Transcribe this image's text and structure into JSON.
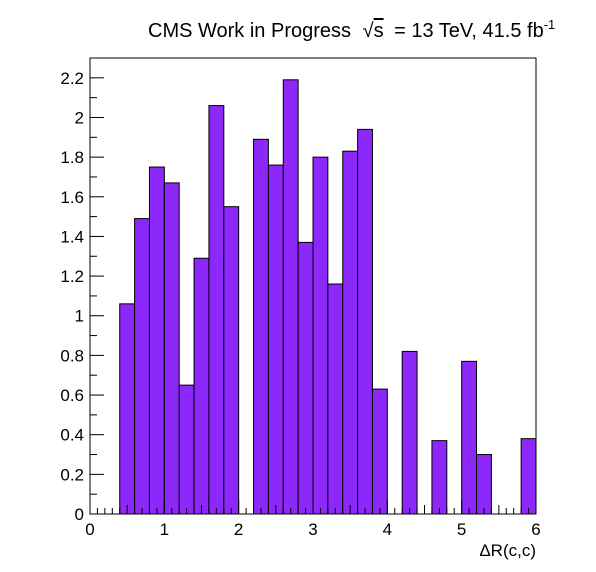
{
  "chart_data": {
    "type": "bar",
    "title": {
      "prefix": "CMS Work in Progress",
      "sqrt_symbol": "√",
      "sqrt_var": "s",
      "energy": "= 13 TeV, 41.5 fb",
      "exponent": "-1"
    },
    "xlabel": "ΔR(c,c)",
    "ylabel": "",
    "xlim": [
      0,
      6
    ],
    "ylim": [
      0,
      2.3
    ],
    "bin_width": 0.2,
    "bin_edges_start": 0,
    "values": [
      0,
      0,
      1.06,
      1.49,
      1.75,
      1.67,
      0.65,
      1.29,
      2.06,
      1.55,
      0,
      1.89,
      1.76,
      2.19,
      1.37,
      1.8,
      1.16,
      1.83,
      1.94,
      0.63,
      0,
      0.82,
      0,
      0.37,
      0,
      0.77,
      0.3,
      0,
      0,
      0.38
    ],
    "x_ticks": [
      "0",
      "1",
      "2",
      "3",
      "4",
      "5",
      "6"
    ],
    "y_ticks": [
      "0",
      "0.2",
      "0.4",
      "0.6",
      "0.8",
      "1",
      "1.2",
      "1.4",
      "1.6",
      "1.8",
      "2",
      "2.2"
    ],
    "colors": {
      "fill": "#8c28fa",
      "edge": "#000000"
    },
    "grid": false,
    "legend": "none"
  }
}
